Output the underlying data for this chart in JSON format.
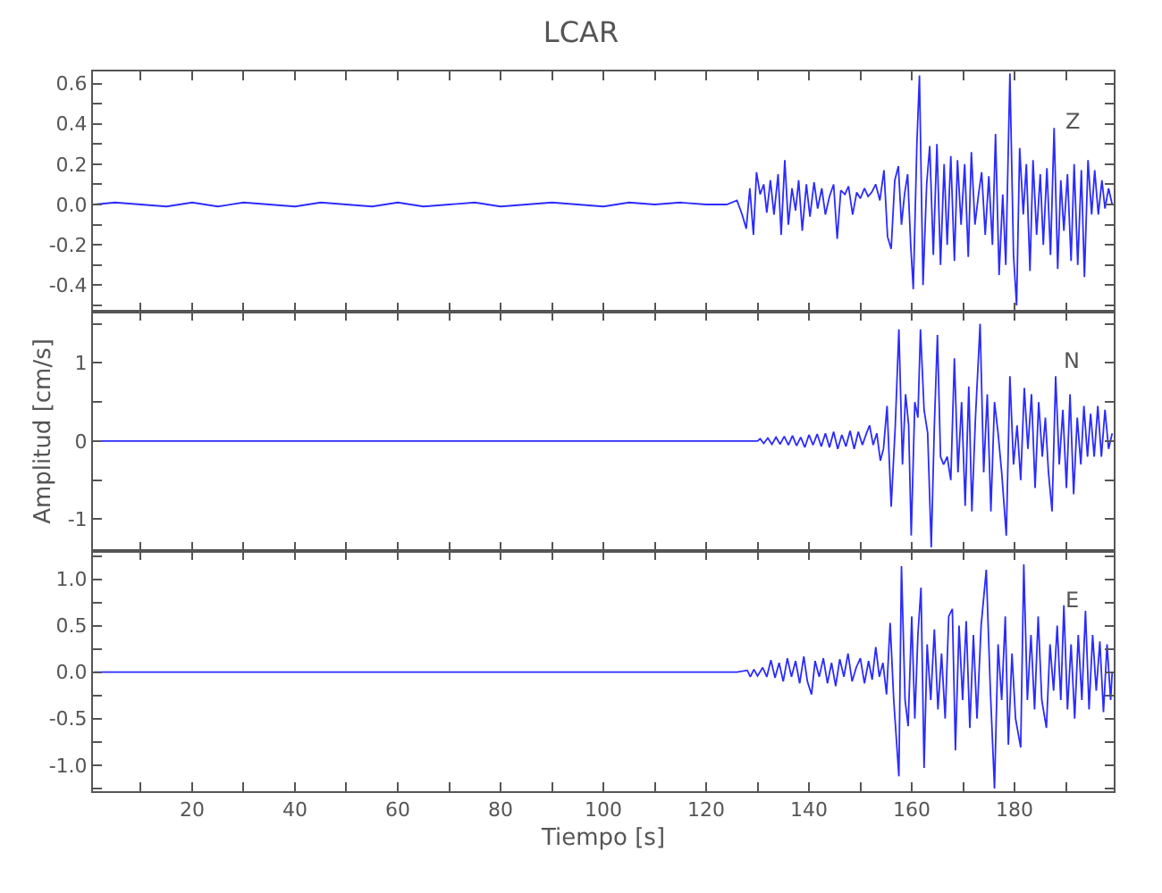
{
  "chart_data": [
    {
      "type": "line",
      "title": "LCAR",
      "tick_labels": "y",
      "annotations": [
        "Z"
      ],
      "xlim": [
        0.7,
        199.3
      ],
      "xticks": [
        {
          "value": 10,
          "label": null
        },
        20,
        {
          "value": 30,
          "label": null
        },
        40,
        {
          "value": 50,
          "label": null
        },
        60,
        {
          "value": 70,
          "label": null
        },
        80,
        {
          "value": 90,
          "label": null
        },
        100,
        {
          "value": 110,
          "label": null
        },
        120,
        {
          "value": 130,
          "label": null
        },
        140,
        {
          "value": 150,
          "label": null
        },
        160,
        {
          "value": 170,
          "label": null
        },
        180,
        {
          "value": 190,
          "label": null
        }
      ],
      "ylim": [
        -0.53,
        0.66
      ],
      "yticks": [
        {
          "value": -0.5,
          "label": null
        },
        -0.4,
        {
          "value": -0.3,
          "label": null
        },
        -0.2,
        {
          "value": -0.1,
          "label": null
        },
        {
          "value": 0,
          "label": "0.0"
        },
        {
          "value": 0.1,
          "label": null
        },
        0.2,
        {
          "value": 0.3,
          "label": null
        },
        0.4,
        {
          "value": 0.5,
          "label": null
        },
        0.6
      ],
      "series": [
        {
          "color": "#2b2bff",
          "x": [
            1,
            5,
            10,
            15,
            20,
            25,
            30,
            35,
            40,
            45,
            50,
            55,
            60,
            65,
            70,
            75,
            80,
            85,
            90,
            95,
            100,
            105,
            110,
            115,
            120,
            124,
            126,
            127,
            127.8,
            128.5,
            129.2,
            129.8,
            130.5,
            131.2,
            131.8,
            132.5,
            133.2,
            134,
            134.6,
            135.3,
            136,
            136.7,
            137.4,
            138,
            138.7,
            139.5,
            140.2,
            141,
            141.7,
            142.5,
            143.2,
            144,
            144.8,
            145.5,
            146.2,
            147,
            147.7,
            148.5,
            149.3,
            150,
            150.8,
            151.5,
            152.2,
            153,
            153.8,
            154.6,
            155.3,
            156,
            156.7,
            157.4,
            158,
            158.6,
            159.2,
            159.8,
            160.3,
            161,
            161.5,
            162.2,
            162.9,
            163.5,
            164.2,
            164.9,
            165.6,
            166.3,
            166.9,
            167.6,
            168.3,
            168.9,
            169.6,
            170.3,
            171,
            171.6,
            172.3,
            173,
            173.6,
            174.3,
            175,
            175.7,
            176.3,
            177,
            177.7,
            178.3,
            179.1,
            179.8,
            180.4,
            181,
            181.7,
            182.3,
            183,
            183.6,
            184.3,
            185,
            185.6,
            186.3,
            187,
            187.7,
            188.4,
            189,
            189.6,
            190.3,
            191,
            191.6,
            192.3,
            193,
            193.6,
            194.3,
            195,
            195.6,
            196.3,
            197,
            197.6,
            198.3,
            199
          ],
          "values": [
            0,
            0.01,
            0,
            -0.01,
            0.01,
            -0.01,
            0.01,
            0,
            -0.01,
            0.01,
            0,
            -0.01,
            0.01,
            -0.01,
            0,
            0.01,
            -0.01,
            0,
            0.01,
            0,
            -0.01,
            0.01,
            0,
            0.01,
            0,
            0,
            0.02,
            -0.05,
            -0.12,
            0.08,
            -0.15,
            0.16,
            0.05,
            0.1,
            -0.04,
            0.12,
            -0.05,
            0.15,
            -0.15,
            0.22,
            -0.1,
            0.08,
            -0.03,
            0.12,
            -0.13,
            0.1,
            -0.06,
            0.11,
            -0.02,
            0.08,
            -0.05,
            0.04,
            0.1,
            -0.17,
            0.07,
            0.05,
            0.09,
            -0.05,
            0.06,
            0.03,
            0.08,
            0.04,
            0.06,
            0.1,
            0.02,
            0.17,
            -0.16,
            -0.22,
            0.12,
            0.19,
            -0.1,
            0.05,
            0.15,
            -0.2,
            -0.42,
            0.3,
            0.64,
            -0.4,
            0.1,
            0.29,
            -0.25,
            0.3,
            -0.3,
            0.2,
            -0.2,
            0.24,
            -0.28,
            0.22,
            -0.1,
            0.2,
            -0.26,
            0.26,
            -0.1,
            0.05,
            0.16,
            -0.15,
            0.14,
            -0.2,
            0.35,
            -0.35,
            0.05,
            -0.3,
            0.65,
            -0.25,
            -0.5,
            0.28,
            -0.05,
            0.2,
            -0.33,
            0.22,
            -0.15,
            0.15,
            -0.2,
            0.18,
            -0.25,
            0.38,
            -0.32,
            0.12,
            -0.13,
            0.15,
            -0.28,
            0.2,
            -0.3,
            0.17,
            -0.36,
            0.22,
            -0.05,
            0.17,
            -0.05,
            0.12,
            -0.02,
            0.08,
            0
          ]
        }
      ]
    },
    {
      "type": "line",
      "ylabel": "Amplitud [cm/s]",
      "tick_labels": "y",
      "annotations": [
        "N"
      ],
      "xlim": [
        0.7,
        199.3
      ],
      "xticks": [
        {
          "value": 10,
          "label": null
        },
        20,
        {
          "value": 30,
          "label": null
        },
        40,
        {
          "value": 50,
          "label": null
        },
        60,
        {
          "value": 70,
          "label": null
        },
        80,
        {
          "value": 90,
          "label": null
        },
        100,
        {
          "value": 110,
          "label": null
        },
        120,
        {
          "value": 130,
          "label": null
        },
        140,
        {
          "value": 150,
          "label": null
        },
        160,
        {
          "value": 170,
          "label": null
        },
        180,
        {
          "value": 190,
          "label": null
        }
      ],
      "ylim": [
        -1.41,
        1.66
      ],
      "yticks": [
        -1,
        {
          "value": -0.5,
          "label": null
        },
        0,
        {
          "value": 0.5,
          "label": null
        },
        1,
        {
          "value": 1.5,
          "label": null
        }
      ],
      "series": [
        {
          "color": "#2b2bff",
          "x": [
            1,
            20,
            40,
            60,
            80,
            100,
            120,
            130,
            130.5,
            131.2,
            132,
            132.8,
            133.6,
            134.4,
            135.2,
            136,
            136.8,
            137.6,
            138.4,
            139.2,
            140,
            140.8,
            141.6,
            142.4,
            143.2,
            144,
            144.8,
            145.6,
            146.4,
            147.2,
            148,
            148.8,
            149.6,
            150.4,
            151.2,
            151.8,
            152.5,
            153.2,
            153.9,
            154.5,
            155.2,
            156,
            156.8,
            157.5,
            158.2,
            158.8,
            159.4,
            159.9,
            160.6,
            161.2,
            161.7,
            162.4,
            163.1,
            163.8,
            164.4,
            165,
            165.6,
            166.2,
            166.9,
            167.6,
            168.3,
            169,
            169.7,
            170.4,
            171.1,
            171.7,
            172.4,
            173.3,
            174,
            174.7,
            175.4,
            176.1,
            176.8,
            177.5,
            178.4,
            179.1,
            179.8,
            180.5,
            181.2,
            181.9,
            182.6,
            183.3,
            184,
            184.7,
            185.4,
            186,
            186.6,
            187.3,
            188,
            188.7,
            189.4,
            190.1,
            190.8,
            191.5,
            192.2,
            192.9,
            193.5,
            194.2,
            194.8,
            195.5,
            196.2,
            196.9,
            197.6,
            198.3,
            199
          ],
          "values": [
            0,
            0,
            0,
            0,
            0,
            0,
            0,
            0,
            0.03,
            -0.03,
            0.04,
            -0.04,
            0.05,
            -0.04,
            0.06,
            -0.05,
            0.07,
            -0.06,
            0.05,
            -0.08,
            0.08,
            -0.05,
            0.09,
            -0.07,
            0.1,
            -0.08,
            0.12,
            -0.1,
            0.08,
            -0.07,
            0.13,
            -0.1,
            0.12,
            -0.05,
            0.1,
            0.2,
            -0.05,
            0.1,
            -0.25,
            -0.1,
            0.45,
            -0.84,
            0.2,
            1.43,
            -0.3,
            0.6,
            0.2,
            -1.21,
            0.5,
            0.3,
            1.43,
            0.4,
            0.1,
            -1.36,
            0.2,
            1.36,
            -0.2,
            -0.3,
            -0.2,
            -0.5,
            1.06,
            -0.4,
            0.5,
            -0.83,
            0.7,
            -0.9,
            0.3,
            1.5,
            -0.4,
            0.6,
            -0.9,
            0.5,
            0.1,
            -0.4,
            -1.21,
            0.83,
            -0.3,
            0.2,
            -0.5,
            0.68,
            -0.1,
            0.6,
            -0.6,
            0.5,
            -0.2,
            0.3,
            -0.4,
            -0.9,
            0.83,
            -0.3,
            0.4,
            -0.6,
            0.6,
            -0.68,
            0.3,
            -0.3,
            0.45,
            -0.2,
            0.35,
            -0.2,
            0.45,
            -0.2,
            0.4,
            -0.1,
            0.1
          ]
        }
      ]
    },
    {
      "type": "line",
      "xlabel": "Tiempo [s]",
      "annotations": [
        "E"
      ],
      "xlim": [
        0.7,
        199.3
      ],
      "xticks": [
        {
          "value": 10,
          "label": null
        },
        20,
        {
          "value": 30,
          "label": null
        },
        40,
        {
          "value": 50,
          "label": null
        },
        60,
        {
          "value": 70,
          "label": null
        },
        80,
        {
          "value": 90,
          "label": null
        },
        100,
        {
          "value": 110,
          "label": null
        },
        120,
        {
          "value": 130,
          "label": null
        },
        140,
        {
          "value": 150,
          "label": null
        },
        160,
        {
          "value": 170,
          "label": null
        },
        180,
        {
          "value": 190,
          "label": null
        }
      ],
      "ylim": [
        -1.28,
        1.3
      ],
      "yticks": [
        {
          "value": -1.25,
          "label": null
        },
        {
          "value": -1,
          "label": "-1.0"
        },
        {
          "value": -0.75,
          "label": null
        },
        -0.5,
        {
          "value": -0.25,
          "label": null
        },
        {
          "value": 0,
          "label": "0.0"
        },
        {
          "value": 0.25,
          "label": null
        },
        0.5,
        {
          "value": 0.75,
          "label": null
        },
        {
          "value": 1,
          "label": "1.0"
        },
        {
          "value": 1.25,
          "label": null
        }
      ],
      "series": [
        {
          "color": "#2b2bff",
          "x": [
            1,
            20,
            40,
            60,
            80,
            100,
            120,
            126,
            128,
            128.6,
            129.3,
            130,
            131,
            131.8,
            132.6,
            133.4,
            134.2,
            135,
            135.8,
            136.6,
            137.4,
            138.2,
            139,
            139.7,
            140.5,
            141.2,
            142,
            142.8,
            143.6,
            144.4,
            145.2,
            146,
            146.8,
            147.6,
            148.4,
            149.2,
            150,
            150.8,
            151.6,
            152.3,
            153,
            153.7,
            154.4,
            155.1,
            155.8,
            156.5,
            157.5,
            158,
            158.7,
            159.3,
            160,
            160.6,
            161.2,
            161.8,
            162.4,
            163,
            163.7,
            164.4,
            165.1,
            165.8,
            166.5,
            167.2,
            167.9,
            168.5,
            169.2,
            169.9,
            170.6,
            171.3,
            172,
            172.7,
            173.5,
            174.5,
            175.3,
            176.1,
            176.8,
            177.5,
            178.2,
            178.8,
            179.5,
            180.2,
            181.2,
            181.8,
            182.5,
            183.2,
            183.9,
            184.6,
            185.3,
            186.2,
            186.9,
            187.6,
            188.3,
            189,
            189.6,
            190.3,
            191,
            191.7,
            192.4,
            193.1,
            193.8,
            194.5,
            195.2,
            195.9,
            196.6,
            197.3,
            198,
            198.7,
            199
          ],
          "values": [
            0,
            0,
            0,
            0,
            0,
            0,
            0,
            0,
            0.02,
            -0.05,
            0.03,
            -0.04,
            0.05,
            -0.05,
            0.13,
            -0.06,
            0.1,
            -0.1,
            0.15,
            -0.05,
            0.12,
            -0.12,
            0.17,
            -0.1,
            -0.24,
            0.12,
            -0.05,
            0.15,
            -0.12,
            0.1,
            -0.15,
            0.14,
            -0.05,
            0.2,
            -0.1,
            0.05,
            0.15,
            -0.12,
            0.12,
            -0.08,
            0.27,
            -0.05,
            0.1,
            -0.24,
            0.53,
            -0.3,
            -1.12,
            1.14,
            -0.3,
            -0.58,
            0.6,
            -0.5,
            0.4,
            0.91,
            -1.03,
            0.3,
            -0.3,
            0.46,
            -0.4,
            0.2,
            -0.5,
            0.6,
            0.68,
            -0.84,
            0.5,
            -0.3,
            0.55,
            -0.6,
            0.4,
            -0.5,
            0.5,
            1.1,
            -0.2,
            -1.25,
            0.3,
            -0.3,
            0.6,
            -0.78,
            0.2,
            -0.5,
            -0.81,
            1.16,
            -0.3,
            0.4,
            -0.4,
            0.6,
            -0.3,
            -0.6,
            0.3,
            -0.2,
            0.5,
            -0.3,
            0.72,
            -0.4,
            0.3,
            -0.5,
            0.4,
            -0.3,
            0.66,
            -0.4,
            0.4,
            -0.2,
            0.33,
            -0.43,
            0.3,
            -0.3,
            0
          ]
        }
      ]
    }
  ]
}
